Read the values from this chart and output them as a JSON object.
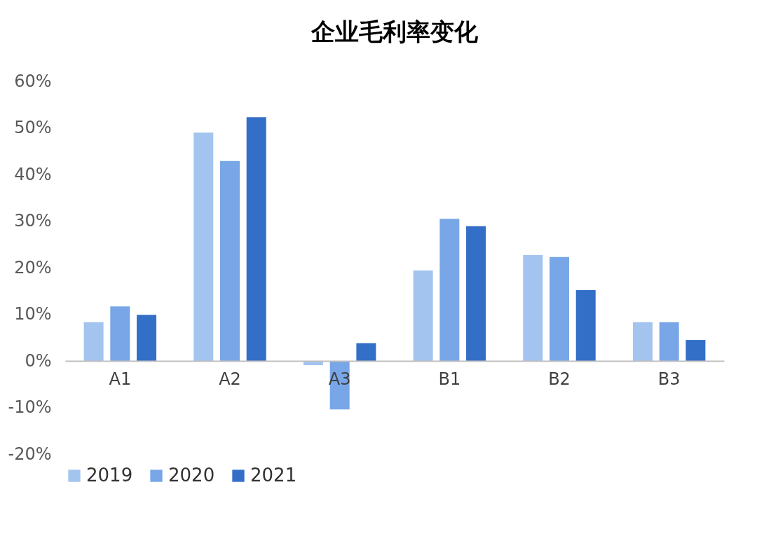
{
  "chart_data": {
    "type": "bar",
    "title": "企业毛利率变化",
    "categories": [
      "A1",
      "A2",
      "A3",
      "B1",
      "B2",
      "B3"
    ],
    "series": [
      {
        "name": "2019",
        "color": "#a3c4ef",
        "values": [
          8.3,
          49.0,
          -0.9,
          19.4,
          22.7,
          8.3
        ]
      },
      {
        "name": "2020",
        "color": "#78a6e6",
        "values": [
          11.7,
          42.9,
          -10.4,
          30.5,
          22.3,
          8.3
        ]
      },
      {
        "name": "2021",
        "color": "#346fc7",
        "values": [
          9.9,
          52.3,
          3.8,
          28.9,
          15.2,
          4.5
        ]
      }
    ],
    "ylim": [
      -20,
      60
    ],
    "yticks": [
      {
        "value": -20,
        "label": "-20%"
      },
      {
        "value": -10,
        "label": "-10%"
      },
      {
        "value": 0,
        "label": "0%"
      },
      {
        "value": 10,
        "label": "10%"
      },
      {
        "value": 20,
        "label": "20%"
      },
      {
        "value": 30,
        "label": "30%"
      },
      {
        "value": 40,
        "label": "40%"
      },
      {
        "value": 50,
        "label": "50%"
      },
      {
        "value": 60,
        "label": "60%"
      }
    ],
    "grid": false,
    "legend": "bottom"
  }
}
